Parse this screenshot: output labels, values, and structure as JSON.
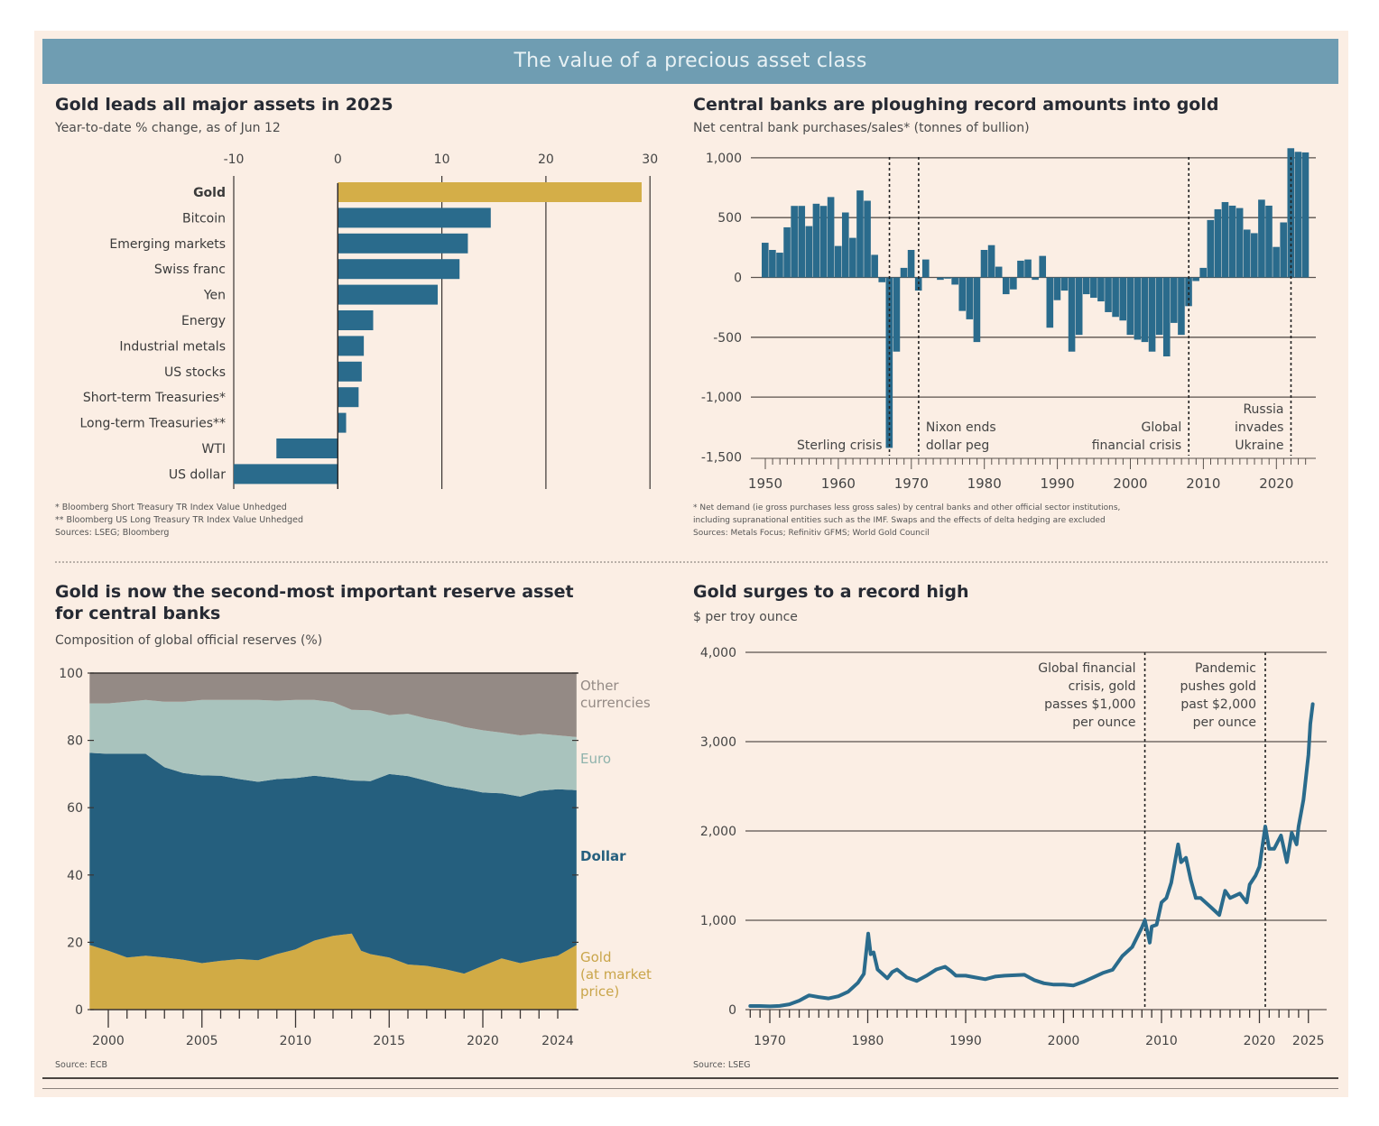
{
  "banner": {
    "title": "The value of a precious asset class"
  },
  "colors": {
    "background": "#fbeee4",
    "banner": "#6f9db2",
    "blue": "#2a6b8c",
    "gold": "#d4ae48",
    "dollar": "#255f7e",
    "euro": "#a9c3bd",
    "other": "#948a85",
    "gold_area": "#d1ab45"
  },
  "panels": {
    "assets": {
      "title": "Gold leads all major assets in 2025",
      "subtitle": "Year-to-date % change, as of Jun 12",
      "notes": [
        "* Bloomberg Short Treasury TR Index Value Unhedged",
        "** Bloomberg US Long Treasury TR Index Value Unhedged",
        "Sources: LSEG; Bloomberg"
      ]
    },
    "central_banks": {
      "title": "Central banks are ploughing record amounts into gold",
      "subtitle": "Net central bank purchases/sales* (tonnes of bullion)",
      "notes": [
        "* Net demand (ie gross purchases less gross sales) by central banks and other official sector institutions,",
        "including supranational entities such as the IMF. Swaps and the effects of delta hedging are excluded",
        "Sources: Metals Focus; Refinitiv GFMS; World Gold Council"
      ]
    },
    "reserves": {
      "title_line1": "Gold is now the second-most important reserve asset",
      "title_line2": "for central banks",
      "subtitle": "Composition of global official reserves (%)",
      "notes": [
        "Source: ECB"
      ]
    },
    "price": {
      "title": "Gold surges to a record high",
      "subtitle": "$ per troy ounce",
      "notes": [
        "Source: LSEG"
      ]
    }
  },
  "chart_data": [
    {
      "id": "assets",
      "type": "bar",
      "orientation": "horizontal",
      "title": "Gold leads all major assets in 2025",
      "subtitle": "Year-to-date % change, as of Jun 12",
      "categories": [
        "Gold",
        "Bitcoin",
        "Emerging markets",
        "Swiss franc",
        "Yen",
        "Energy",
        "Industrial metals",
        "US stocks",
        "Short-term Treasuries*",
        "Long-term Treasuries**",
        "WTI",
        "US dollar"
      ],
      "values": [
        29.2,
        14.7,
        12.5,
        11.7,
        9.6,
        3.4,
        2.5,
        2.3,
        2.0,
        0.8,
        -5.9,
        -10.0
      ],
      "highlight": "Gold",
      "xlim": [
        -10,
        30
      ],
      "xticks": [
        -10,
        0,
        10,
        20,
        30
      ],
      "grid": true
    },
    {
      "id": "central_banks",
      "type": "bar",
      "title": "Central banks are ploughing record amounts into gold",
      "subtitle": "Net central bank purchases/sales* (tonnes of bullion)",
      "x_start": 1950,
      "values": [
        290,
        230,
        207,
        419,
        598,
        598,
        429,
        616,
        598,
        672,
        263,
        543,
        331,
        727,
        641,
        189,
        -40,
        -1425,
        -620,
        80,
        230,
        -110,
        150,
        0,
        -20,
        -10,
        -60,
        -280,
        -350,
        -540,
        230,
        270,
        90,
        -140,
        -100,
        140,
        150,
        -20,
        180,
        -420,
        -190,
        -110,
        -620,
        -480,
        -140,
        -170,
        -200,
        -290,
        -330,
        -360,
        -480,
        -520,
        -540,
        -620,
        -480,
        -660,
        -380,
        -480,
        -240,
        -30,
        80,
        480,
        570,
        630,
        600,
        580,
        400,
        370,
        650,
        600,
        255,
        460,
        1080,
        1050,
        1045
      ],
      "ylim": [
        -1500,
        1000
      ],
      "yticks": [
        1000,
        500,
        0,
        -500,
        -1000,
        -1500
      ],
      "ytick_labels": [
        "1,000",
        "500",
        "0",
        "-500",
        "-1,000",
        "-1,500"
      ],
      "xticks": [
        1950,
        1960,
        1970,
        1980,
        1990,
        2000,
        2010,
        2020
      ],
      "annotations": [
        {
          "x": 1967,
          "lines": [
            "Sterling crisis"
          ],
          "align": "left-of-line"
        },
        {
          "x": 1971,
          "lines": [
            "Nixon ends",
            "dollar peg"
          ],
          "align": "right-of-line"
        },
        {
          "x": 2008,
          "lines": [
            "Global",
            "financial crisis"
          ],
          "align": "left-of-line"
        },
        {
          "x": 2022,
          "lines": [
            "Russia",
            "invades",
            "Ukraine"
          ],
          "align": "left-of-line"
        }
      ],
      "grid": true
    },
    {
      "id": "reserves",
      "type": "area",
      "stacked": true,
      "title": "Gold is now the second-most important reserve asset for central banks",
      "subtitle": "Composition of global official reserves (%)",
      "x": [
        1999,
        2000,
        2001,
        2002,
        2003,
        2004,
        2005,
        2006,
        2007,
        2008,
        2009,
        2010,
        2011,
        2012,
        2013,
        2013.5,
        2014,
        2015,
        2016,
        2017,
        2018,
        2019,
        2020,
        2021,
        2022,
        2023,
        2024,
        2025
      ],
      "series": [
        {
          "name": "Gold (at market price)",
          "values": [
            19.2,
            17.5,
            15.5,
            16.0,
            15.5,
            14.8,
            13.8,
            14.5,
            15.0,
            14.7,
            16.5,
            17.9,
            20.5,
            21.9,
            22.6,
            17.5,
            16.5,
            15.5,
            13.4,
            13.0,
            12.0,
            10.7,
            13.0,
            15.2,
            13.8,
            15.0,
            16.0,
            19.2
          ]
        },
        {
          "name": "Dollar",
          "values": [
            57.1,
            58.5,
            60.5,
            60.0,
            56.5,
            55.5,
            55.8,
            55.0,
            53.5,
            53.0,
            52.0,
            50.9,
            49.0,
            47.0,
            45.5,
            50.5,
            51.4,
            54.5,
            56.0,
            55.0,
            54.5,
            54.9,
            51.5,
            49.1,
            49.5,
            50.0,
            49.5,
            46.0
          ]
        },
        {
          "name": "Euro",
          "values": [
            14.7,
            15.0,
            15.5,
            16.0,
            19.5,
            21.2,
            22.4,
            22.5,
            23.5,
            24.3,
            23.3,
            23.2,
            22.5,
            22.5,
            21.0,
            21.0,
            21.0,
            17.5,
            18.5,
            18.5,
            19.0,
            18.4,
            18.5,
            18.0,
            18.2,
            17.0,
            16.0,
            15.8
          ]
        },
        {
          "name": "Other currencies",
          "values": [
            9.0,
            9.0,
            8.5,
            8.0,
            8.5,
            8.5,
            8.0,
            8.0,
            8.0,
            8.0,
            8.2,
            8.0,
            8.0,
            8.6,
            10.9,
            11.0,
            11.1,
            12.5,
            12.1,
            13.5,
            14.5,
            16.0,
            17.0,
            17.7,
            18.5,
            18.0,
            18.5,
            19.0
          ]
        }
      ],
      "ylim": [
        0,
        100
      ],
      "yticks": [
        0,
        20,
        40,
        60,
        80,
        100
      ],
      "xticks": [
        2000,
        2005,
        2010,
        2015,
        2020,
        2024
      ],
      "legend_placement": "right",
      "legend_labels": [
        {
          "series": "Other currencies",
          "lines": [
            "Other",
            "currencies"
          ]
        },
        {
          "series": "Euro",
          "lines": [
            "Euro"
          ]
        },
        {
          "series": "Dollar",
          "lines": [
            "Dollar"
          ]
        },
        {
          "series": "Gold (at market price)",
          "lines": [
            "Gold",
            "(at market",
            "price)"
          ]
        }
      ]
    },
    {
      "id": "price",
      "type": "line",
      "title": "Gold surges to a record high",
      "subtitle": "$ per troy ounce",
      "x": [
        1968,
        1969,
        1970,
        1971,
        1972,
        1973,
        1974,
        1975,
        1976,
        1977,
        1978,
        1979,
        1979.6,
        1980.05,
        1980.3,
        1980.6,
        1981,
        1982,
        1982.5,
        1983,
        1984,
        1985,
        1986,
        1987,
        1987.9,
        1988.5,
        1989,
        1990,
        1991,
        1992,
        1993,
        1994,
        1995,
        1996,
        1997,
        1998,
        1999,
        2000,
        2001,
        2002,
        2003,
        2004,
        2005,
        2006,
        2007,
        2008,
        2008.3,
        2008.8,
        2009,
        2009.5,
        2010,
        2010.5,
        2011,
        2011.7,
        2012,
        2012.5,
        2013,
        2013.5,
        2014,
        2015,
        2015.9,
        2016.5,
        2017,
        2018,
        2018.7,
        2019,
        2019.6,
        2020,
        2020.6,
        2021,
        2021.5,
        2022.2,
        2022.8,
        2023.3,
        2023.8,
        2024,
        2024.5,
        2024.8,
        2025,
        2025.2,
        2025.45
      ],
      "values": [
        40,
        40,
        36,
        41,
        60,
        100,
        160,
        140,
        125,
        150,
        200,
        300,
        400,
        850,
        620,
        640,
        450,
        350,
        420,
        450,
        360,
        320,
        380,
        450,
        480,
        430,
        380,
        380,
        360,
        340,
        370,
        380,
        385,
        390,
        330,
        295,
        280,
        280,
        270,
        310,
        360,
        410,
        445,
        600,
        700,
        920,
        1000,
        750,
        930,
        950,
        1200,
        1250,
        1420,
        1850,
        1650,
        1700,
        1450,
        1250,
        1250,
        1150,
        1060,
        1330,
        1250,
        1300,
        1200,
        1400,
        1500,
        1600,
        2050,
        1800,
        1800,
        1950,
        1650,
        1980,
        1850,
        2050,
        2350,
        2650,
        2850,
        3200,
        3420
      ],
      "ylim": [
        0,
        4000
      ],
      "yticks": [
        0,
        1000,
        2000,
        3000,
        4000
      ],
      "ytick_labels": [
        "0",
        "1,000",
        "2,000",
        "3,000",
        "4,000"
      ],
      "xticks": [
        1970,
        1980,
        1990,
        2000,
        2010,
        2020,
        2025
      ],
      "annotations": [
        {
          "x": 2008.3,
          "lines": [
            "Global financial",
            "crisis, gold",
            "passes $1,000",
            "per ounce"
          ],
          "align": "left-of-line"
        },
        {
          "x": 2020.6,
          "lines": [
            "Pandemic",
            "pushes gold",
            "past $2,000",
            "per ounce"
          ],
          "align": "left-of-line"
        }
      ],
      "grid": true
    }
  ]
}
